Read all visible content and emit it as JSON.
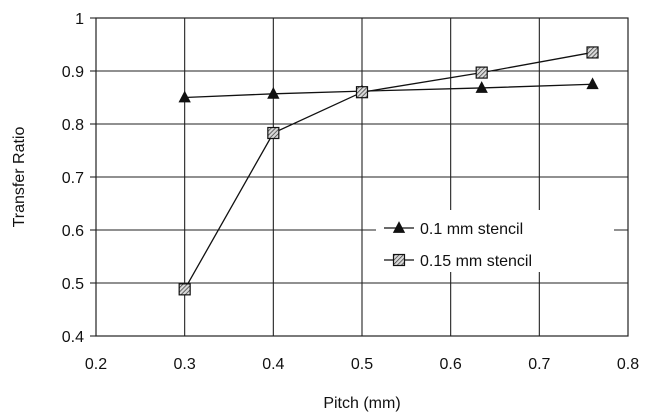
{
  "chart_data": {
    "type": "line",
    "title": "",
    "xlabel": "Pitch (mm)",
    "ylabel": "Transfer Ratio",
    "xlim": [
      0.2,
      0.8
    ],
    "ylim": [
      0.4,
      1.0
    ],
    "xticks": [
      "0.2",
      "0.3",
      "0.4",
      "0.5",
      "0.6",
      "0.7",
      "0.8"
    ],
    "yticks": [
      "0.4",
      "0.5",
      "0.6",
      "0.7",
      "0.8",
      "0.9",
      "1"
    ],
    "grid": true,
    "legend_position": "right",
    "series": [
      {
        "name": "0.1 mm stencil",
        "marker": "triangle",
        "color": "#111111",
        "x": [
          0.3,
          0.4,
          0.5,
          0.635,
          0.76
        ],
        "y": [
          0.85,
          0.857,
          0.862,
          0.868,
          0.875
        ]
      },
      {
        "name": "0.15 mm stencil",
        "marker": "hatched-square",
        "color": "#111111",
        "x": [
          0.3,
          0.4,
          0.5,
          0.635,
          0.76
        ],
        "y": [
          0.488,
          0.783,
          0.86,
          0.897,
          0.935
        ]
      }
    ]
  }
}
